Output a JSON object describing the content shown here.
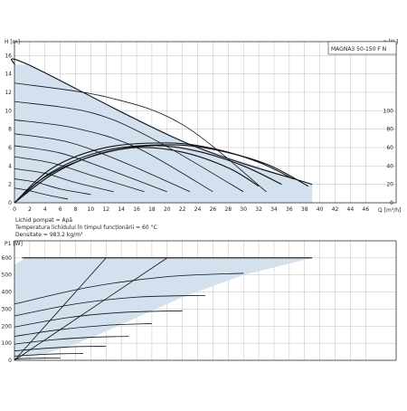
{
  "chart_data": [
    {
      "type": "line",
      "title": "MAGNA3 50-150 F N",
      "xlabel": "Q [m³/h]",
      "ylabel": "H [m]",
      "y2label": "η [%]",
      "x_ticks": [
        0,
        2,
        4,
        6,
        8,
        10,
        12,
        14,
        16,
        18,
        20,
        22,
        24,
        26,
        28,
        30,
        32,
        34,
        36,
        38,
        40,
        42,
        44,
        46
      ],
      "y_ticks": [
        0,
        2,
        4,
        6,
        8,
        10,
        12,
        14,
        16
      ],
      "y2_ticks": [
        0,
        20,
        40,
        60,
        80,
        100
      ],
      "xlim": [
        0,
        50
      ],
      "ylim": [
        0,
        17.5
      ],
      "y2lim": [
        0,
        175
      ],
      "grid": true,
      "notes": [
        "Lichid pompat = Apă",
        "Temperatura lichidului în timpul funcționării = 60 °C",
        "Densitate = 983.2 kg/m³"
      ],
      "operating_region": {
        "upper_boundary": [
          [
            0,
            15
          ],
          [
            1.8,
            15
          ],
          [
            22.5,
            6.5
          ],
          [
            39,
            2
          ]
        ],
        "lower_boundary": [
          [
            0,
            0
          ],
          [
            39,
            0
          ]
        ]
      },
      "speed_curves": [
        {
          "name": "",
          "x": [
            0,
            1.8,
            22.5,
            39
          ],
          "y": [
            15,
            15,
            6.5,
            2
          ]
        },
        {
          "name": "",
          "x": [
            0,
            12,
            22,
            33
          ],
          "y": [
            13,
            11.5,
            8.5,
            1.2
          ]
        },
        {
          "name": "",
          "x": [
            0,
            10,
            18,
            30
          ],
          "y": [
            11,
            9.8,
            7,
            1.2
          ]
        },
        {
          "name": "",
          "x": [
            0,
            8,
            16,
            26
          ],
          "y": [
            9,
            8.1,
            6,
            1.2
          ]
        },
        {
          "name": "",
          "x": [
            0,
            7,
            14,
            23
          ],
          "y": [
            7.5,
            6.6,
            4.5,
            1.2
          ]
        },
        {
          "name": "",
          "x": [
            0,
            6,
            12,
            20
          ],
          "y": [
            6.2,
            5.4,
            3.7,
            1.2
          ]
        },
        {
          "name": "",
          "x": [
            0,
            5,
            10,
            17
          ],
          "y": [
            5,
            4.3,
            3,
            1.2
          ]
        },
        {
          "name": "",
          "x": [
            0,
            4,
            8,
            13
          ],
          "y": [
            3.7,
            3.2,
            2.2,
            1.2
          ]
        },
        {
          "name": "",
          "x": [
            0,
            3,
            6,
            10
          ],
          "y": [
            2.6,
            2.2,
            1.5,
            0.9
          ]
        },
        {
          "name": "",
          "x": [
            0,
            2,
            4,
            7
          ],
          "y": [
            1.6,
            1.3,
            0.9,
            0.4
          ]
        }
      ],
      "efficiency_curves": [
        {
          "name": "",
          "x": [
            0,
            5,
            12,
            20,
            26,
            32,
            36.5
          ],
          "y": [
            0,
            38,
            60,
            65,
            59,
            44,
            26
          ]
        },
        {
          "name": "",
          "x": [
            0,
            5,
            12,
            20,
            26,
            33,
            38.5
          ],
          "y": [
            0,
            34,
            57,
            63,
            58,
            42,
            18
          ]
        },
        {
          "name": "",
          "x": [
            0,
            5,
            11,
            18,
            24,
            30,
            35
          ],
          "y": [
            0,
            31,
            53,
            62,
            56,
            40,
            20
          ]
        },
        {
          "name": "",
          "x": [
            0,
            4,
            10,
            16,
            22,
            28,
            32
          ],
          "y": [
            0,
            28,
            50,
            60,
            55,
            38,
            18
          ]
        }
      ]
    },
    {
      "type": "line",
      "xlabel": "",
      "ylabel": "P1 [W]",
      "y_ticks": [
        0,
        100,
        200,
        300,
        400,
        500,
        600
      ],
      "ylim": [
        0,
        700
      ],
      "xlim": [
        0,
        50
      ],
      "grid": true,
      "power_region": {
        "upper_boundary": [
          [
            0,
            560
          ],
          [
            1.5,
            600
          ],
          [
            39,
            600
          ]
        ],
        "right_boundary": [
          [
            39,
            600
          ],
          [
            30,
            500
          ],
          [
            22,
            370
          ],
          [
            16,
            250
          ],
          [
            11,
            150
          ],
          [
            7,
            80
          ],
          [
            3,
            25
          ],
          [
            0,
            0
          ]
        ]
      },
      "power_curves": [
        {
          "name": "",
          "x": [
            1,
            20,
            39
          ],
          "y": [
            600,
            600,
            600
          ]
        },
        {
          "name": "",
          "x": [
            0,
            10,
            20,
            30
          ],
          "y": [
            330,
            430,
            490,
            510
          ]
        },
        {
          "name": "",
          "x": [
            0,
            8,
            16,
            25
          ],
          "y": [
            260,
            330,
            370,
            380
          ]
        },
        {
          "name": "",
          "x": [
            0,
            7,
            14,
            22
          ],
          "y": [
            195,
            250,
            280,
            290
          ]
        },
        {
          "name": "",
          "x": [
            0,
            6,
            12,
            18
          ],
          "y": [
            140,
            180,
            205,
            215
          ]
        },
        {
          "name": "",
          "x": [
            0,
            5,
            10,
            15
          ],
          "y": [
            95,
            120,
            135,
            140
          ]
        },
        {
          "name": "",
          "x": [
            0,
            4,
            8,
            12
          ],
          "y": [
            55,
            70,
            80,
            82
          ]
        },
        {
          "name": "",
          "x": [
            0,
            3,
            6,
            9
          ],
          "y": [
            25,
            33,
            38,
            40
          ]
        },
        {
          "name": "",
          "x": [
            0,
            2,
            4,
            6
          ],
          "y": [
            8,
            11,
            13,
            14
          ]
        }
      ],
      "diagonal_curves": [
        {
          "name": "",
          "x": [
            0,
            6,
            12
          ],
          "y": [
            0,
            300,
            600
          ]
        },
        {
          "name": "",
          "x": [
            0,
            10,
            20
          ],
          "y": [
            0,
            300,
            600
          ]
        }
      ]
    }
  ]
}
